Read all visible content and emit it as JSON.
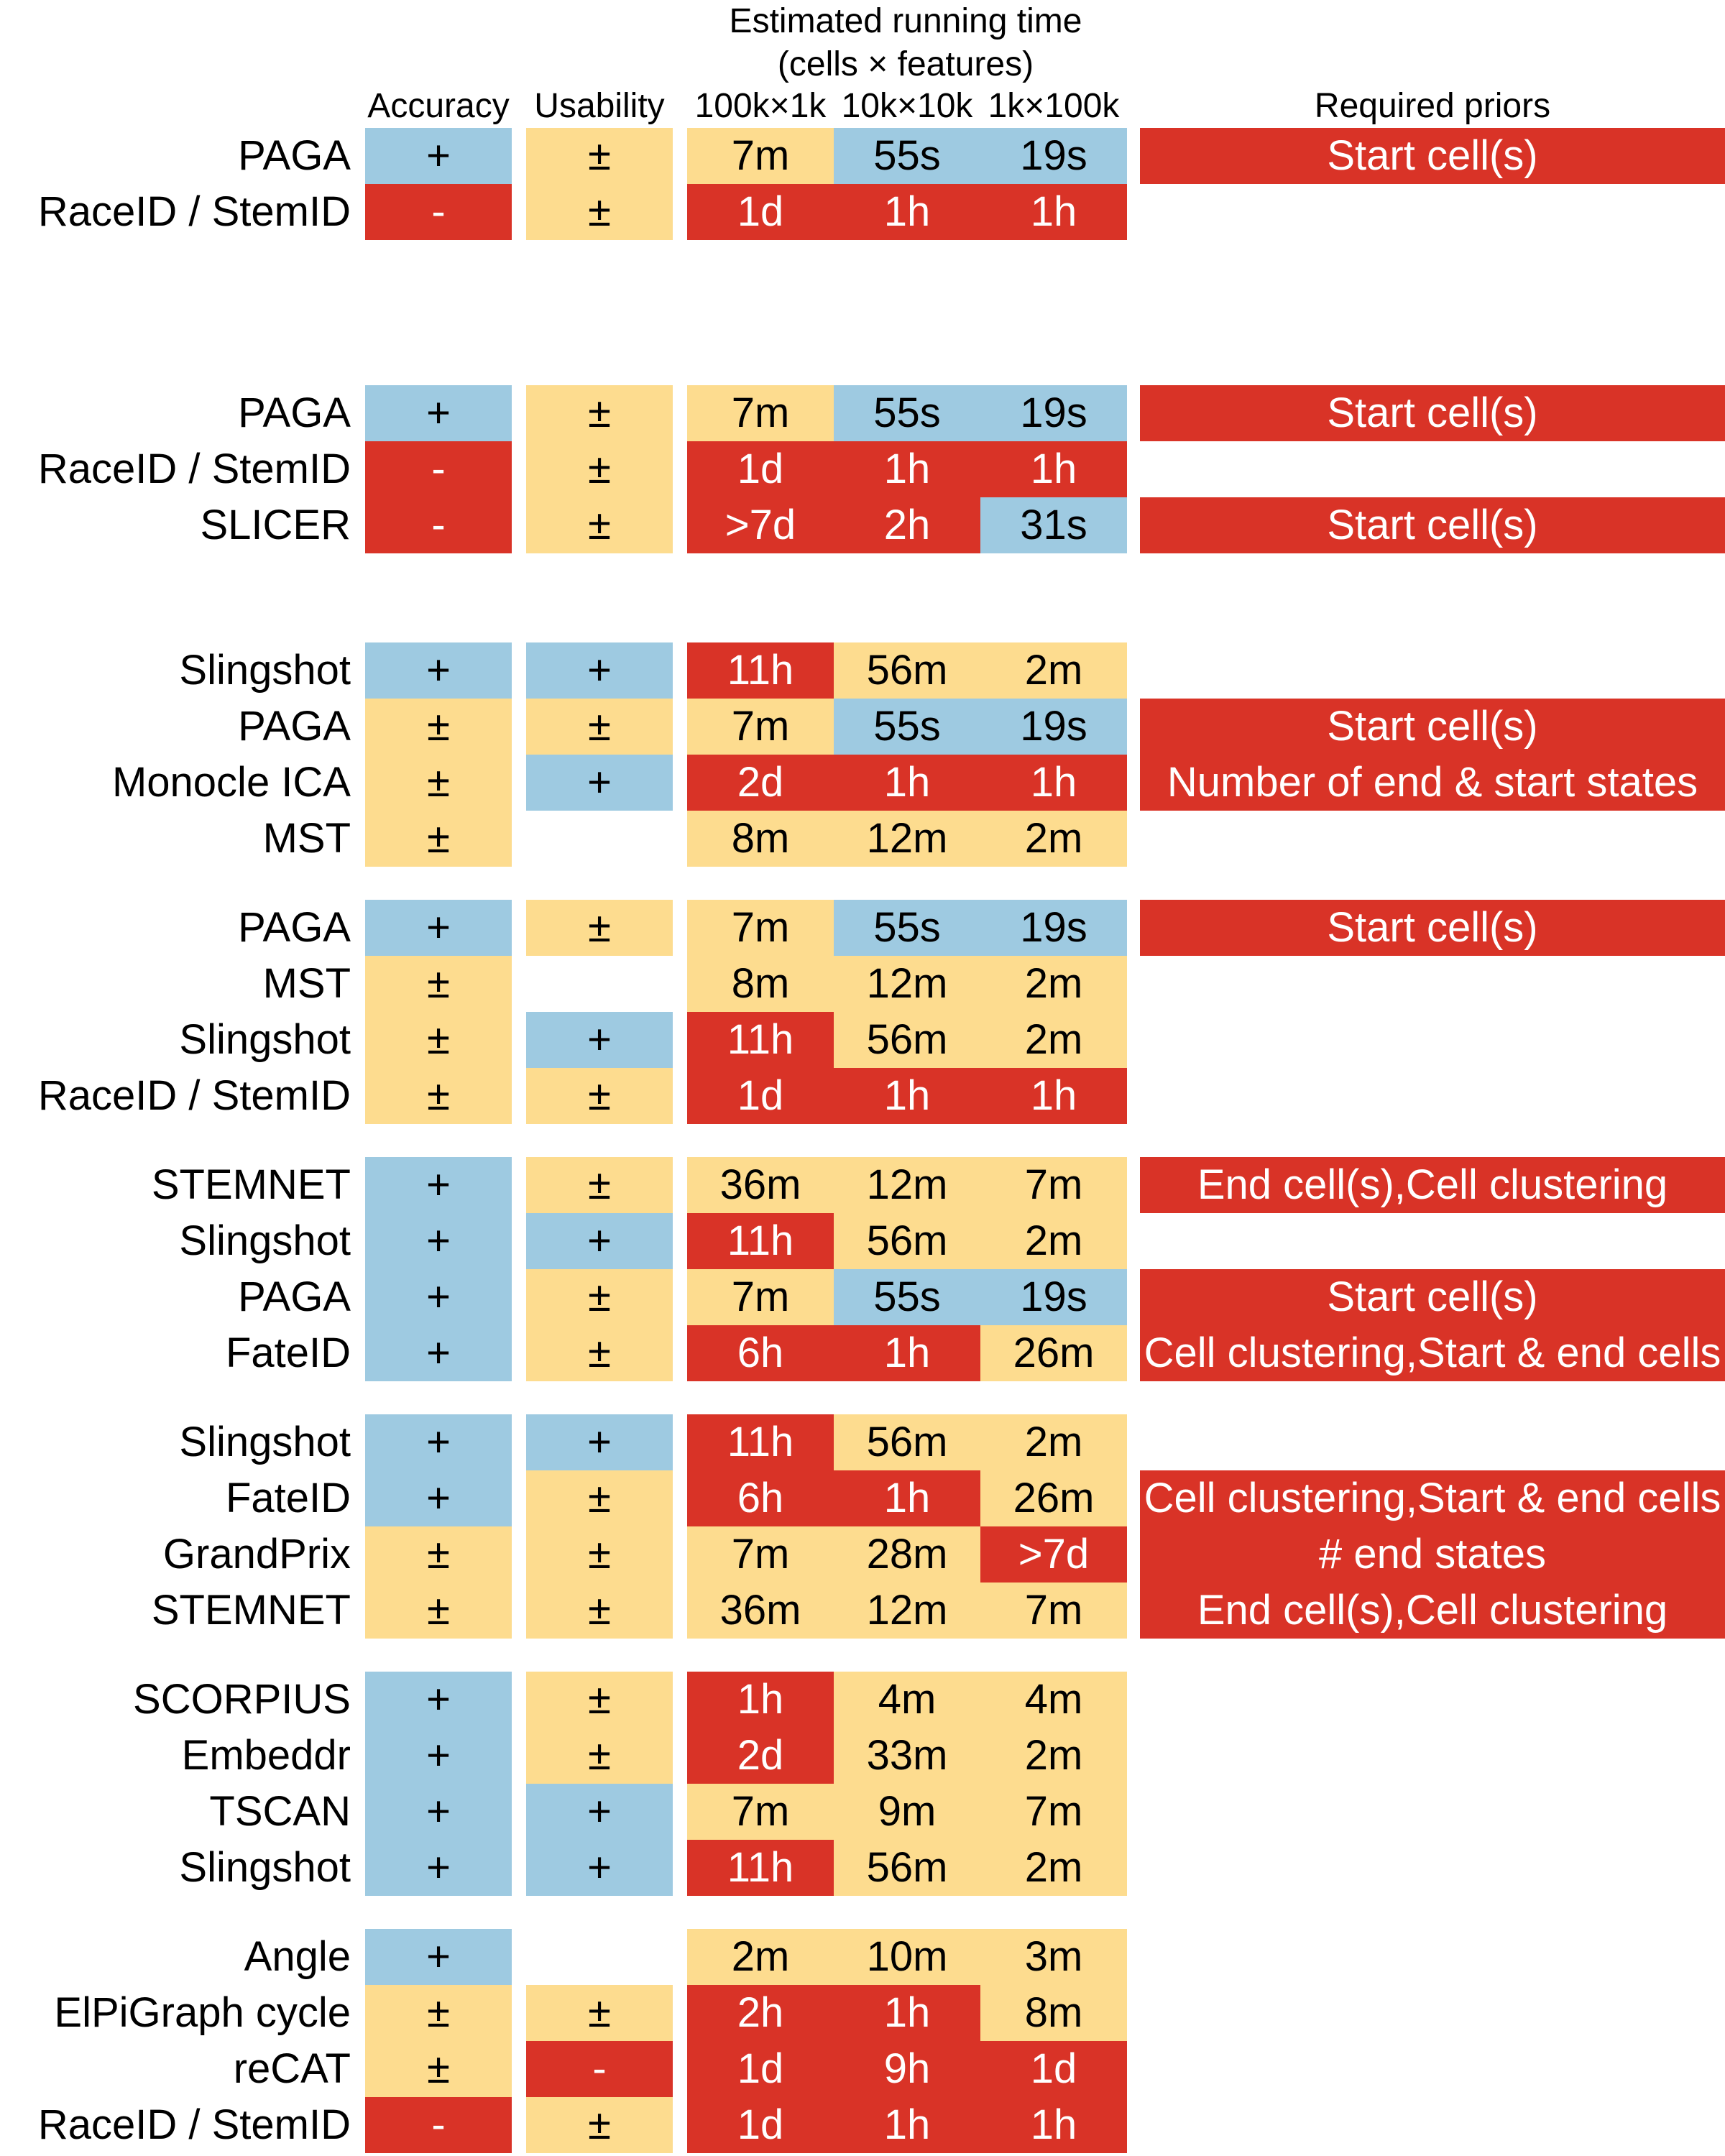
{
  "chart_data": {
    "type": "table",
    "header": {
      "running_time_title_line1": "Estimated running time",
      "running_time_title_line2": "(cells × features)",
      "accuracy": "Accuracy",
      "usability": "Usability",
      "time_1": "100k×1k",
      "time_2": "10k×10k",
      "time_3": "1k×100k",
      "priors": "Required priors"
    },
    "colors": {
      "good": "#9ecae1",
      "medium": "#fddc8f",
      "bad": "#d93327"
    },
    "groups": [
      {
        "rows": [
          {
            "name": "PAGA",
            "accuracy": {
              "v": "+",
              "c": "blue"
            },
            "usability": {
              "v": "±",
              "c": "yellow"
            },
            "times": [
              {
                "v": "7m",
                "c": "yellow"
              },
              {
                "v": "55s",
                "c": "blue"
              },
              {
                "v": "19s",
                "c": "blue"
              }
            ],
            "prior": "Start cell(s)"
          },
          {
            "name": "RaceID / StemID",
            "accuracy": {
              "v": "-",
              "c": "red"
            },
            "usability": {
              "v": "±",
              "c": "yellow"
            },
            "times": [
              {
                "v": "1d",
                "c": "red"
              },
              {
                "v": "1h",
                "c": "red"
              },
              {
                "v": "1h",
                "c": "red"
              }
            ],
            "prior": ""
          }
        ]
      },
      {
        "rows": [
          {
            "name": "PAGA",
            "accuracy": {
              "v": "+",
              "c": "blue"
            },
            "usability": {
              "v": "±",
              "c": "yellow"
            },
            "times": [
              {
                "v": "7m",
                "c": "yellow"
              },
              {
                "v": "55s",
                "c": "blue"
              },
              {
                "v": "19s",
                "c": "blue"
              }
            ],
            "prior": "Start cell(s)"
          },
          {
            "name": "RaceID / StemID",
            "accuracy": {
              "v": "-",
              "c": "red"
            },
            "usability": {
              "v": "±",
              "c": "yellow"
            },
            "times": [
              {
                "v": "1d",
                "c": "red"
              },
              {
                "v": "1h",
                "c": "red"
              },
              {
                "v": "1h",
                "c": "red"
              }
            ],
            "prior": ""
          },
          {
            "name": "SLICER",
            "accuracy": {
              "v": "-",
              "c": "red"
            },
            "usability": {
              "v": "±",
              "c": "yellow"
            },
            "times": [
              {
                "v": ">7d",
                "c": "red"
              },
              {
                "v": "2h",
                "c": "red"
              },
              {
                "v": "31s",
                "c": "blue"
              }
            ],
            "prior": "Start cell(s)"
          }
        ]
      },
      {
        "rows": [
          {
            "name": "Slingshot",
            "accuracy": {
              "v": "+",
              "c": "blue"
            },
            "usability": {
              "v": "+",
              "c": "blue"
            },
            "times": [
              {
                "v": "11h",
                "c": "red"
              },
              {
                "v": "56m",
                "c": "yellow"
              },
              {
                "v": "2m",
                "c": "yellow"
              }
            ],
            "prior": ""
          },
          {
            "name": "PAGA",
            "accuracy": {
              "v": "±",
              "c": "yellow"
            },
            "usability": {
              "v": "±",
              "c": "yellow"
            },
            "times": [
              {
                "v": "7m",
                "c": "yellow"
              },
              {
                "v": "55s",
                "c": "blue"
              },
              {
                "v": "19s",
                "c": "blue"
              }
            ],
            "prior": "Start cell(s)"
          },
          {
            "name": "Monocle ICA",
            "accuracy": {
              "v": "±",
              "c": "yellow"
            },
            "usability": {
              "v": "+",
              "c": "blue"
            },
            "times": [
              {
                "v": "2d",
                "c": "red"
              },
              {
                "v": "1h",
                "c": "red"
              },
              {
                "v": "1h",
                "c": "red"
              }
            ],
            "prior": "Number of end & start states"
          },
          {
            "name": "MST",
            "accuracy": {
              "v": "±",
              "c": "yellow"
            },
            "usability": null,
            "times": [
              {
                "v": "8m",
                "c": "yellow"
              },
              {
                "v": "12m",
                "c": "yellow"
              },
              {
                "v": "2m",
                "c": "yellow"
              }
            ],
            "prior": ""
          }
        ]
      },
      {
        "rows": [
          {
            "name": "PAGA",
            "accuracy": {
              "v": "+",
              "c": "blue"
            },
            "usability": {
              "v": "±",
              "c": "yellow"
            },
            "times": [
              {
                "v": "7m",
                "c": "yellow"
              },
              {
                "v": "55s",
                "c": "blue"
              },
              {
                "v": "19s",
                "c": "blue"
              }
            ],
            "prior": "Start cell(s)"
          },
          {
            "name": "MST",
            "accuracy": {
              "v": "±",
              "c": "yellow"
            },
            "usability": null,
            "times": [
              {
                "v": "8m",
                "c": "yellow"
              },
              {
                "v": "12m",
                "c": "yellow"
              },
              {
                "v": "2m",
                "c": "yellow"
              }
            ],
            "prior": ""
          },
          {
            "name": "Slingshot",
            "accuracy": {
              "v": "±",
              "c": "yellow"
            },
            "usability": {
              "v": "+",
              "c": "blue"
            },
            "times": [
              {
                "v": "11h",
                "c": "red"
              },
              {
                "v": "56m",
                "c": "yellow"
              },
              {
                "v": "2m",
                "c": "yellow"
              }
            ],
            "prior": ""
          },
          {
            "name": "RaceID / StemID",
            "accuracy": {
              "v": "±",
              "c": "yellow"
            },
            "usability": {
              "v": "±",
              "c": "yellow"
            },
            "times": [
              {
                "v": "1d",
                "c": "red"
              },
              {
                "v": "1h",
                "c": "red"
              },
              {
                "v": "1h",
                "c": "red"
              }
            ],
            "prior": ""
          }
        ]
      },
      {
        "rows": [
          {
            "name": "STEMNET",
            "accuracy": {
              "v": "+",
              "c": "blue"
            },
            "usability": {
              "v": "±",
              "c": "yellow"
            },
            "times": [
              {
                "v": "36m",
                "c": "yellow"
              },
              {
                "v": "12m",
                "c": "yellow"
              },
              {
                "v": "7m",
                "c": "yellow"
              }
            ],
            "prior": "End cell(s),Cell clustering"
          },
          {
            "name": "Slingshot",
            "accuracy": {
              "v": "+",
              "c": "blue"
            },
            "usability": {
              "v": "+",
              "c": "blue"
            },
            "times": [
              {
                "v": "11h",
                "c": "red"
              },
              {
                "v": "56m",
                "c": "yellow"
              },
              {
                "v": "2m",
                "c": "yellow"
              }
            ],
            "prior": ""
          },
          {
            "name": "PAGA",
            "accuracy": {
              "v": "+",
              "c": "blue"
            },
            "usability": {
              "v": "±",
              "c": "yellow"
            },
            "times": [
              {
                "v": "7m",
                "c": "yellow"
              },
              {
                "v": "55s",
                "c": "blue"
              },
              {
                "v": "19s",
                "c": "blue"
              }
            ],
            "prior": "Start cell(s)"
          },
          {
            "name": "FateID",
            "accuracy": {
              "v": "+",
              "c": "blue"
            },
            "usability": {
              "v": "±",
              "c": "yellow"
            },
            "times": [
              {
                "v": "6h",
                "c": "red"
              },
              {
                "v": "1h",
                "c": "red"
              },
              {
                "v": "26m",
                "c": "yellow"
              }
            ],
            "prior": "Cell clustering,Start & end cells"
          }
        ]
      },
      {
        "rows": [
          {
            "name": "Slingshot",
            "accuracy": {
              "v": "+",
              "c": "blue"
            },
            "usability": {
              "v": "+",
              "c": "blue"
            },
            "times": [
              {
                "v": "11h",
                "c": "red"
              },
              {
                "v": "56m",
                "c": "yellow"
              },
              {
                "v": "2m",
                "c": "yellow"
              }
            ],
            "prior": ""
          },
          {
            "name": "FateID",
            "accuracy": {
              "v": "+",
              "c": "blue"
            },
            "usability": {
              "v": "±",
              "c": "yellow"
            },
            "times": [
              {
                "v": "6h",
                "c": "red"
              },
              {
                "v": "1h",
                "c": "red"
              },
              {
                "v": "26m",
                "c": "yellow"
              }
            ],
            "prior": "Cell clustering,Start & end cells"
          },
          {
            "name": "GrandPrix",
            "accuracy": {
              "v": "±",
              "c": "yellow"
            },
            "usability": {
              "v": "±",
              "c": "yellow"
            },
            "times": [
              {
                "v": "7m",
                "c": "yellow"
              },
              {
                "v": "28m",
                "c": "yellow"
              },
              {
                "v": ">7d",
                "c": "red"
              }
            ],
            "prior": "# end states"
          },
          {
            "name": "STEMNET",
            "accuracy": {
              "v": "±",
              "c": "yellow"
            },
            "usability": {
              "v": "±",
              "c": "yellow"
            },
            "times": [
              {
                "v": "36m",
                "c": "yellow"
              },
              {
                "v": "12m",
                "c": "yellow"
              },
              {
                "v": "7m",
                "c": "yellow"
              }
            ],
            "prior": "End cell(s),Cell clustering"
          }
        ]
      },
      {
        "rows": [
          {
            "name": "SCORPIUS",
            "accuracy": {
              "v": "+",
              "c": "blue"
            },
            "usability": {
              "v": "±",
              "c": "yellow"
            },
            "times": [
              {
                "v": "1h",
                "c": "red"
              },
              {
                "v": "4m",
                "c": "yellow"
              },
              {
                "v": "4m",
                "c": "yellow"
              }
            ],
            "prior": ""
          },
          {
            "name": "Embeddr",
            "accuracy": {
              "v": "+",
              "c": "blue"
            },
            "usability": {
              "v": "±",
              "c": "yellow"
            },
            "times": [
              {
                "v": "2d",
                "c": "red"
              },
              {
                "v": "33m",
                "c": "yellow"
              },
              {
                "v": "2m",
                "c": "yellow"
              }
            ],
            "prior": ""
          },
          {
            "name": "TSCAN",
            "accuracy": {
              "v": "+",
              "c": "blue"
            },
            "usability": {
              "v": "+",
              "c": "blue"
            },
            "times": [
              {
                "v": "7m",
                "c": "yellow"
              },
              {
                "v": "9m",
                "c": "yellow"
              },
              {
                "v": "7m",
                "c": "yellow"
              }
            ],
            "prior": ""
          },
          {
            "name": "Slingshot",
            "accuracy": {
              "v": "+",
              "c": "blue"
            },
            "usability": {
              "v": "+",
              "c": "blue"
            },
            "times": [
              {
                "v": "11h",
                "c": "red"
              },
              {
                "v": "56m",
                "c": "yellow"
              },
              {
                "v": "2m",
                "c": "yellow"
              }
            ],
            "prior": ""
          }
        ]
      },
      {
        "rows": [
          {
            "name": "Angle",
            "accuracy": {
              "v": "+",
              "c": "blue"
            },
            "usability": null,
            "times": [
              {
                "v": "2m",
                "c": "yellow"
              },
              {
                "v": "10m",
                "c": "yellow"
              },
              {
                "v": "3m",
                "c": "yellow"
              }
            ],
            "prior": ""
          },
          {
            "name": "ElPiGraph cycle",
            "accuracy": {
              "v": "±",
              "c": "yellow"
            },
            "usability": {
              "v": "±",
              "c": "yellow"
            },
            "times": [
              {
                "v": "2h",
                "c": "red"
              },
              {
                "v": "1h",
                "c": "red"
              },
              {
                "v": "8m",
                "c": "yellow"
              }
            ],
            "prior": ""
          },
          {
            "name": "reCAT",
            "accuracy": {
              "v": "±",
              "c": "yellow"
            },
            "usability": {
              "v": "-",
              "c": "red"
            },
            "times": [
              {
                "v": "1d",
                "c": "red"
              },
              {
                "v": "9h",
                "c": "red"
              },
              {
                "v": "1d",
                "c": "red"
              }
            ],
            "prior": ""
          },
          {
            "name": "RaceID / StemID",
            "accuracy": {
              "v": "-",
              "c": "red"
            },
            "usability": {
              "v": "±",
              "c": "yellow"
            },
            "times": [
              {
                "v": "1d",
                "c": "red"
              },
              {
                "v": "1h",
                "c": "red"
              },
              {
                "v": "1h",
                "c": "red"
              }
            ],
            "prior": ""
          }
        ]
      }
    ]
  }
}
